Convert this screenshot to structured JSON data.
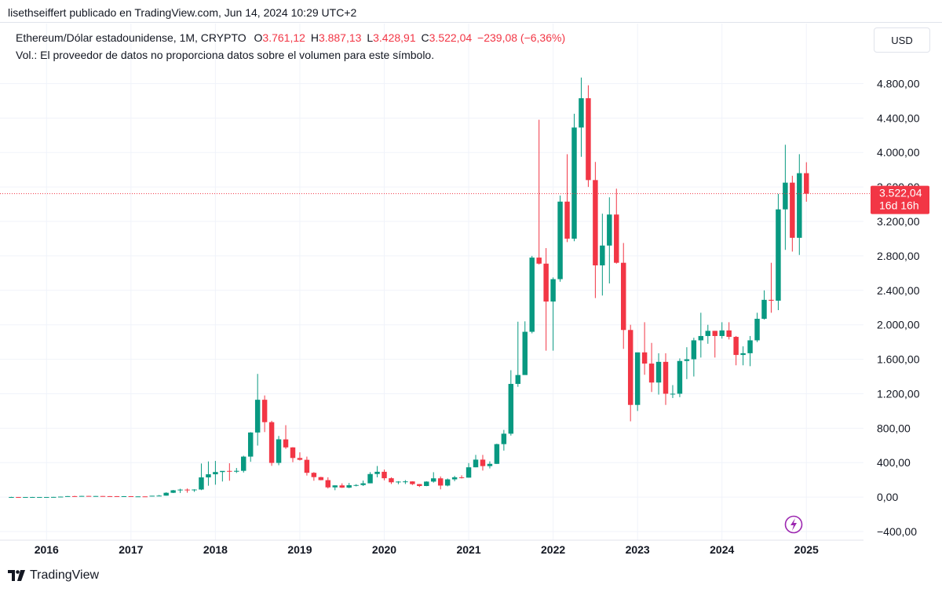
{
  "header": {
    "credit": "lisethseiffert publicado en TradingView.com, Jun 14, 2024 10:29 UTC+2"
  },
  "legend": {
    "symbol": "Ethereum/Dólar estadounidense, 1M, CRYPTO",
    "o_label": "O",
    "o_value": "3.761,12",
    "h_label": "H",
    "h_value": "3.887,13",
    "l_label": "L",
    "l_value": "3.428,91",
    "c_label": "C",
    "c_value": "3.522,04",
    "change": "−239,08 (−6,36%)",
    "volume_note": "Vol.: El proveedor de datos no proporciona datos sobre el volumen para este símbolo."
  },
  "currency_button": "USD",
  "price_tag": {
    "price": "3.522,04",
    "countdown": "16d 16h"
  },
  "footer": {
    "brand": "TradingView"
  },
  "colors": {
    "up": "#089981",
    "down": "#f23645",
    "grid": "#f0f3fa",
    "text": "#131722",
    "lightning": "#9c27b0"
  },
  "icons": {
    "lightning": "lightning-icon",
    "logo": "tradingview-logo-icon"
  },
  "chart_data": {
    "type": "candlestick",
    "interval": "1M",
    "symbol": "Ethereum/Dólar estadounidense",
    "y_ticks": [
      -400,
      0,
      400,
      800,
      1200,
      1600,
      2000,
      2400,
      2800,
      3200,
      3600,
      4000,
      4400,
      4800
    ],
    "y_tick_labels": [
      "−400,00",
      "0,00",
      "400,00",
      "800,00",
      "1.200,00",
      "1.600,00",
      "2.000,00",
      "2.400,00",
      "2.800,00",
      "3.200,00",
      "3.600,00",
      "4.000,00",
      "4.400,00",
      "4.800,00"
    ],
    "ylim": [
      -500,
      4950
    ],
    "x_ticks": [
      "2016",
      "2017",
      "2018",
      "2019",
      "2020",
      "2021",
      "2022",
      "2023",
      "2024",
      "2025"
    ],
    "x_start": "2015-08",
    "x_range": [
      -0.5,
      120
    ],
    "last_price": 3522.04,
    "grid": true,
    "candles": [
      [
        1.2,
        3.5,
        0.7,
        1.3
      ],
      [
        1.4,
        1.5,
        0.4,
        0.9
      ],
      [
        0.8,
        1.2,
        0.4,
        0.9
      ],
      [
        0.9,
        2.3,
        0.9,
        0.9
      ],
      [
        0.9,
        1.2,
        0.8,
        0.9
      ],
      [
        0.9,
        1.4,
        0.9,
        1.0
      ],
      [
        1.0,
        2.7,
        0.9,
        2.2
      ],
      [
        2.2,
        6.5,
        2.0,
        5.6
      ],
      [
        5.6,
        12.3,
        5.6,
        11.4
      ],
      [
        11.4,
        14.3,
        7.5,
        8.8
      ],
      [
        8.8,
        14.8,
        8.4,
        13.6
      ],
      [
        13.7,
        15.0,
        10.0,
        11.3
      ],
      [
        11.3,
        13.0,
        10.6,
        12.7
      ],
      [
        12.7,
        13.0,
        11.0,
        11.1
      ],
      [
        11.1,
        12.0,
        9.7,
        11.0
      ],
      [
        11.0,
        11.3,
        7.5,
        8.3
      ],
      [
        8.3,
        11.4,
        7.1,
        10.6
      ],
      [
        10.6,
        11.0,
        8.3,
        8.2
      ],
      [
        8.2,
        8.8,
        7.0,
        8.2
      ],
      [
        8.2,
        8.9,
        7.5,
        7.9
      ],
      [
        8.0,
        15.8,
        8.0,
        15.8
      ],
      [
        15.8,
        24.6,
        15.4,
        17.0
      ],
      [
        17.0,
        56.0,
        16.8,
        50.0
      ],
      [
        50.0,
        83.0,
        47.0,
        79.0
      ],
      [
        79.0,
        97.0,
        48.0,
        87.0
      ],
      [
        87.0,
        100.0,
        51.0,
        81.0
      ],
      [
        81.0,
        91.0,
        61.0,
        88.0
      ],
      [
        88.0,
        390.0,
        81.0,
        229.0
      ],
      [
        229.0,
        414.0,
        132.0,
        265.0
      ],
      [
        265.0,
        420.0,
        144.0,
        291.0
      ],
      [
        291.0,
        301.0,
        181.0,
        304.0
      ],
      [
        304.0,
        393.0,
        190.0,
        295.0
      ],
      [
        295.0,
        338.0,
        280.0,
        305.0
      ],
      [
        305.0,
        480.0,
        285.0,
        470.0
      ],
      [
        470.0,
        754.0,
        410.0,
        750.0
      ],
      [
        750.0,
        1430.0,
        598.0,
        1130.0
      ],
      [
        1130.0,
        1180.0,
        755.0,
        870.0
      ],
      [
        870.0,
        886.0,
        363.0,
        397.0
      ],
      [
        397.0,
        710.0,
        370.0,
        671.0
      ],
      [
        670.0,
        835.0,
        560.0,
        577.0
      ],
      [
        577.0,
        580.0,
        405.0,
        454.0
      ],
      [
        454.0,
        520.0,
        425.0,
        433.0
      ],
      [
        433.0,
        470.0,
        250.0,
        282.0
      ],
      [
        282.0,
        290.0,
        190.0,
        232.0
      ],
      [
        232.0,
        236.0,
        195.0,
        197.0
      ],
      [
        197.0,
        230.0,
        100.0,
        113.0
      ],
      [
        113.0,
        137.0,
        80.0,
        136.0
      ],
      [
        136.0,
        160.0,
        106.0,
        110.0
      ],
      [
        110.0,
        164.0,
        104.0,
        138.0
      ],
      [
        138.0,
        150.0,
        125.0,
        140.0
      ],
      [
        140.0,
        192.0,
        129.0,
        160.0
      ],
      [
        160.0,
        290.0,
        160.0,
        268.0
      ],
      [
        268.0,
        361.0,
        230.0,
        294.0
      ],
      [
        294.0,
        320.0,
        195.0,
        219.0
      ],
      [
        219.0,
        230.0,
        152.0,
        172.0
      ],
      [
        172.0,
        185.0,
        150.0,
        180.0
      ],
      [
        180.0,
        197.0,
        152.0,
        182.0
      ],
      [
        182.0,
        184.0,
        140.0,
        151.0
      ],
      [
        151.0,
        152.0,
        117.0,
        129.0
      ],
      [
        129.0,
        184.0,
        127.0,
        180.0
      ],
      [
        180.0,
        289.0,
        168.0,
        218.0
      ],
      [
        218.0,
        240.0,
        90.0,
        134.0
      ],
      [
        134.0,
        216.0,
        125.0,
        206.0
      ],
      [
        206.0,
        246.0,
        185.0,
        230.0
      ],
      [
        230.0,
        253.0,
        216.0,
        226.0
      ],
      [
        226.0,
        395.0,
        226.0,
        346.0
      ],
      [
        346.0,
        490.0,
        346.0,
        435.0
      ],
      [
        435.0,
        490.0,
        308.0,
        360.0
      ],
      [
        360.0,
        415.0,
        333.0,
        386.0
      ],
      [
        386.0,
        620.0,
        385.0,
        615.0
      ],
      [
        615.0,
        780.0,
        540.0,
        736.0
      ],
      [
        736.0,
        1473.0,
        714.0,
        1314.0
      ],
      [
        1314.0,
        2036.0,
        1280.0,
        1417.0
      ],
      [
        1417.0,
        2040.0,
        1420.0,
        1919.0
      ],
      [
        1919.0,
        2800.0,
        1901.0,
        2780.0
      ],
      [
        2780.0,
        4380.0,
        2700.0,
        2710.0
      ],
      [
        2710.0,
        2890.0,
        1700.0,
        2270.0
      ],
      [
        2270.0,
        2550.0,
        1700.0,
        2530.0
      ],
      [
        2530.0,
        3500.0,
        2500.0,
        3430.0
      ],
      [
        3430.0,
        3980.0,
        2960.0,
        3000.0
      ],
      [
        3000.0,
        4450.0,
        2970.0,
        4290.0
      ],
      [
        4290.0,
        4870.0,
        3950.0,
        4630.0
      ],
      [
        4630.0,
        4780.0,
        3600.0,
        3680.0
      ],
      [
        3680.0,
        3890.0,
        2310.0,
        2690.0
      ],
      [
        2690.0,
        3290.0,
        2340.0,
        2920.0
      ],
      [
        2920.0,
        3480.0,
        2480.0,
        3280.0
      ],
      [
        3280.0,
        3580.0,
        2710.0,
        2720.0
      ],
      [
        2720.0,
        2950.0,
        1720.0,
        1940.0
      ],
      [
        1940.0,
        2000.0,
        880.0,
        1070.0
      ],
      [
        1070.0,
        1670.0,
        1000.0,
        1680.0
      ],
      [
        1680.0,
        2030.0,
        1420.0,
        1550.0
      ],
      [
        1550.0,
        1790.0,
        1220.0,
        1330.0
      ],
      [
        1330.0,
        1670.0,
        1190.0,
        1570.0
      ],
      [
        1570.0,
        1670.0,
        1070.0,
        1200.0
      ],
      [
        1200.0,
        1300.0,
        1150.0,
        1200.0
      ],
      [
        1200.0,
        1610.0,
        1160.0,
        1580.0
      ],
      [
        1580.0,
        1740.0,
        1370.0,
        1600.0
      ],
      [
        1600.0,
        1850.0,
        1400.0,
        1820.0
      ],
      [
        1820.0,
        2140.0,
        1620.0,
        1870.0
      ],
      [
        1870.0,
        2000.0,
        1780.0,
        1930.0
      ],
      [
        1930.0,
        1930.0,
        1620.0,
        1870.0
      ],
      [
        1870.0,
        2030.0,
        1840.0,
        1935.0
      ],
      [
        1935.0,
        2030.0,
        1830.0,
        1860.0
      ],
      [
        1860.0,
        1870.0,
        1530.0,
        1650.0
      ],
      [
        1650.0,
        1750.0,
        1530.0,
        1670.0
      ],
      [
        1670.0,
        1870.0,
        1520.0,
        1820.0
      ],
      [
        1820.0,
        2140.0,
        1800.0,
        2070.0
      ],
      [
        2070.0,
        2400.0,
        2060.0,
        2290.0
      ],
      [
        2290.0,
        2720.0,
        2140.0,
        2280.0
      ],
      [
        2280.0,
        3520.0,
        2170.0,
        3340.0
      ],
      [
        3340.0,
        4090.0,
        2870.0,
        3650.0
      ],
      [
        3650.0,
        3730.0,
        2850.0,
        3010.0
      ],
      [
        3010.0,
        3980.0,
        2810.0,
        3760.0
      ],
      [
        3760.0,
        3887.0,
        3429.0,
        3522.0
      ]
    ]
  }
}
